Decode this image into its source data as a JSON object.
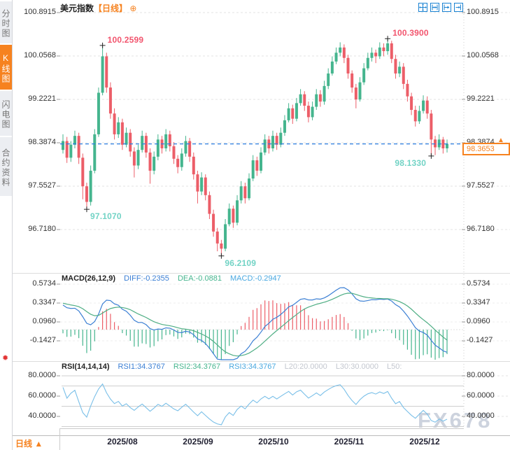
{
  "header": {
    "title": "美元指数",
    "period_tag": "【日线】",
    "plus_icon": "⊕"
  },
  "toolbar": {
    "icons": [
      {
        "name": "pan-crosshair"
      },
      {
        "name": "zoom-range"
      },
      {
        "name": "zoom-to-latest"
      },
      {
        "name": "pan-right"
      }
    ]
  },
  "sidebar": {
    "tabs": [
      {
        "label": "分时图",
        "active": false
      },
      {
        "label": "K线图",
        "active": true
      },
      {
        "label": "闪电图",
        "active": false
      },
      {
        "label": "合约资料",
        "active": false
      }
    ]
  },
  "main_chart": {
    "y_axis_labels": [
      "100.8915",
      "100.0568",
      "99.2221",
      "98.3874",
      "97.5527",
      "96.7180"
    ],
    "current_price": "98.3653",
    "direction_arrow": "▲"
  },
  "macd": {
    "name": "MACD(26,12,9)",
    "diff": "DIFF:-0.2355",
    "dea": "DEA:-0.0881",
    "macd": "MACD:-0.2947",
    "axis_labels": [
      "0.5734",
      "0.3347",
      "0.0960",
      "-0.1427"
    ]
  },
  "rsi": {
    "name": "RSI(14,14,14)",
    "rsi1": "RSI1:34.3767",
    "rsi2": "RSI2:34.3767",
    "rsi3": "RSI3:34.3767",
    "l20": "L20:20.0000",
    "l30": "L30:30.0000",
    "l50": "L50:",
    "axis_labels": [
      "80.0000",
      "60.0000",
      "40.0000"
    ]
  },
  "x_axis": {
    "months": [
      "2025/08",
      "2025/09",
      "2025/10",
      "2025/11",
      "2025/12"
    ]
  },
  "footer": {
    "period": "日线",
    "arrow": "▲"
  },
  "watermark": "FX678",
  "icons": {
    "indicator_settings": "✹"
  },
  "chart_data": {
    "type": "candlestick",
    "panels": [
      "price",
      "MACD(26,12,9)",
      "RSI(14,14,14)"
    ],
    "price_axis_range": [
      95.9,
      101.0
    ],
    "macd_axis_labels": [
      0.5734,
      0.3347,
      0.096,
      -0.1427
    ],
    "rsi_axis_labels": [
      80,
      60,
      40
    ],
    "colors": {
      "up": "#45b58e",
      "down": "#ec5e68",
      "diff_line": "#3b7fd4",
      "dea_line": "#4fae84",
      "rsi_line": "#79bfe8",
      "current_line": "#2b7de0"
    },
    "current_price": 98.3653,
    "marked": [
      {
        "i": 10,
        "p": 100.2599,
        "label": "100.2599",
        "type": "high"
      },
      {
        "i": 82,
        "p": 100.39,
        "label": "100.3900",
        "type": "high"
      },
      {
        "i": 6,
        "p": 97.107,
        "label": "97.1070",
        "type": "low"
      },
      {
        "i": 40,
        "p": 96.2109,
        "label": "96.2109",
        "type": "low"
      },
      {
        "i": 93,
        "p": 98.133,
        "label": "98.1330",
        "type": "low-left"
      }
    ],
    "warmup_closes": [
      96.6,
      96.75,
      96.7,
      96.9,
      97.05,
      96.95,
      97.15,
      97.3,
      97.25,
      97.45,
      97.6,
      97.5,
      97.7,
      97.85,
      97.75,
      97.95,
      98.05,
      97.9,
      98.1,
      98.2,
      98.05,
      98.25,
      98.15,
      98.3,
      98.4,
      98.25,
      98.35,
      98.45,
      98.3,
      98.25
    ],
    "candles": [
      [
        98.25,
        98.55,
        98.18,
        98.42
      ],
      [
        98.42,
        98.5,
        98.0,
        98.1
      ],
      [
        98.1,
        98.42,
        98.02,
        98.35
      ],
      [
        98.35,
        98.62,
        98.28,
        98.52
      ],
      [
        98.52,
        98.58,
        97.98,
        98.1
      ],
      [
        98.1,
        98.18,
        97.3,
        97.55
      ],
      [
        97.55,
        97.62,
        97.107,
        97.25
      ],
      [
        97.25,
        97.95,
        97.18,
        97.85
      ],
      [
        97.85,
        98.65,
        97.8,
        98.55
      ],
      [
        98.55,
        99.45,
        98.5,
        99.35
      ],
      [
        99.35,
        100.2599,
        99.3,
        100.05
      ],
      [
        100.05,
        100.12,
        99.35,
        99.45
      ],
      [
        99.45,
        99.55,
        98.85,
        98.95
      ],
      [
        98.95,
        99.05,
        98.45,
        98.55
      ],
      [
        98.55,
        98.88,
        98.48,
        98.78
      ],
      [
        98.78,
        98.85,
        98.25,
        98.35
      ],
      [
        98.35,
        98.68,
        98.3,
        98.58
      ],
      [
        98.58,
        98.65,
        98.12,
        98.22
      ],
      [
        98.22,
        98.3,
        97.72,
        97.95
      ],
      [
        97.95,
        98.35,
        97.88,
        98.25
      ],
      [
        98.25,
        98.62,
        98.2,
        98.52
      ],
      [
        98.52,
        98.58,
        98.1,
        98.2
      ],
      [
        98.2,
        98.28,
        97.6,
        97.85
      ],
      [
        97.85,
        98.22,
        97.78,
        98.12
      ],
      [
        98.12,
        98.55,
        98.05,
        98.45
      ],
      [
        98.45,
        98.52,
        98.18,
        98.28
      ],
      [
        98.28,
        98.65,
        98.22,
        98.55
      ],
      [
        98.55,
        98.62,
        98.22,
        98.32
      ],
      [
        98.32,
        98.4,
        97.98,
        98.08
      ],
      [
        98.08,
        98.15,
        97.8,
        97.92
      ],
      [
        97.92,
        98.28,
        97.85,
        98.18
      ],
      [
        98.18,
        98.52,
        98.12,
        98.42
      ],
      [
        98.42,
        98.48,
        98.02,
        98.12
      ],
      [
        98.12,
        98.2,
        97.68,
        97.78
      ],
      [
        97.78,
        97.85,
        97.22,
        97.45
      ],
      [
        97.45,
        97.82,
        97.38,
        97.72
      ],
      [
        97.72,
        97.78,
        97.28,
        97.38
      ],
      [
        97.38,
        97.45,
        96.92,
        97.02
      ],
      [
        97.02,
        97.1,
        96.58,
        96.68
      ],
      [
        96.68,
        96.75,
        96.3,
        96.45
      ],
      [
        96.45,
        96.52,
        96.2109,
        96.35
      ],
      [
        96.35,
        96.92,
        96.3,
        96.82
      ],
      [
        96.82,
        97.22,
        96.78,
        97.12
      ],
      [
        97.12,
        97.18,
        96.75,
        96.85
      ],
      [
        96.85,
        97.38,
        96.8,
        97.28
      ],
      [
        97.28,
        97.65,
        97.22,
        97.55
      ],
      [
        97.55,
        97.62,
        97.22,
        97.32
      ],
      [
        97.32,
        97.8,
        97.28,
        97.7
      ],
      [
        97.7,
        98.15,
        97.65,
        98.05
      ],
      [
        98.05,
        98.12,
        97.75,
        97.85
      ],
      [
        97.85,
        98.3,
        97.8,
        98.2
      ],
      [
        98.2,
        98.55,
        98.15,
        98.45
      ],
      [
        98.45,
        98.52,
        98.18,
        98.28
      ],
      [
        98.28,
        98.62,
        98.22,
        98.52
      ],
      [
        98.52,
        98.58,
        98.25,
        98.35
      ],
      [
        98.35,
        98.68,
        98.3,
        98.58
      ],
      [
        98.58,
        98.92,
        98.52,
        98.82
      ],
      [
        98.82,
        99.15,
        98.78,
        99.05
      ],
      [
        99.05,
        99.12,
        98.75,
        98.85
      ],
      [
        98.85,
        99.25,
        98.8,
        99.15
      ],
      [
        99.15,
        99.42,
        99.1,
        99.32
      ],
      [
        99.32,
        99.38,
        99.0,
        99.1
      ],
      [
        99.1,
        99.18,
        98.78,
        98.88
      ],
      [
        98.88,
        99.18,
        98.82,
        99.08
      ],
      [
        99.08,
        99.42,
        99.02,
        99.32
      ],
      [
        99.32,
        99.4,
        99.08,
        99.18
      ],
      [
        99.18,
        99.58,
        99.12,
        99.48
      ],
      [
        99.48,
        99.82,
        99.42,
        99.72
      ],
      [
        99.72,
        100.05,
        99.68,
        99.95
      ],
      [
        99.95,
        100.22,
        99.9,
        100.12
      ],
      [
        100.12,
        100.32,
        100.05,
        100.22
      ],
      [
        100.22,
        100.28,
        99.92,
        100.02
      ],
      [
        100.02,
        100.08,
        99.62,
        99.72
      ],
      [
        99.72,
        99.78,
        99.35,
        99.45
      ],
      [
        99.45,
        99.52,
        99.05,
        99.22
      ],
      [
        99.22,
        99.65,
        99.18,
        99.55
      ],
      [
        99.55,
        99.92,
        99.5,
        99.82
      ],
      [
        99.82,
        100.12,
        99.78,
        100.02
      ],
      [
        100.02,
        100.22,
        99.95,
        100.12
      ],
      [
        100.12,
        100.18,
        99.92,
        100.05
      ],
      [
        100.05,
        100.32,
        100.0,
        100.22
      ],
      [
        100.22,
        100.3,
        100.05,
        100.15
      ],
      [
        100.15,
        100.39,
        100.08,
        100.3
      ],
      [
        100.3,
        100.35,
        99.92,
        100.0
      ],
      [
        100.0,
        100.08,
        99.62,
        99.72
      ],
      [
        99.72,
        99.95,
        99.65,
        99.85
      ],
      [
        99.85,
        99.92,
        99.42,
        99.52
      ],
      [
        99.52,
        99.6,
        99.18,
        99.28
      ],
      [
        99.28,
        99.35,
        98.92,
        99.02
      ],
      [
        99.02,
        99.1,
        98.7,
        98.8
      ],
      [
        98.8,
        99.1,
        98.75,
        99.0
      ],
      [
        99.0,
        99.3,
        98.95,
        99.2
      ],
      [
        99.2,
        99.28,
        98.85,
        98.95
      ],
      [
        98.95,
        99.02,
        98.133,
        98.45
      ],
      [
        98.45,
        98.52,
        98.15,
        98.3
      ],
      [
        98.3,
        98.55,
        98.25,
        98.45
      ],
      [
        98.45,
        98.5,
        98.18,
        98.28
      ],
      [
        98.28,
        98.45,
        98.2,
        98.3653
      ]
    ]
  }
}
